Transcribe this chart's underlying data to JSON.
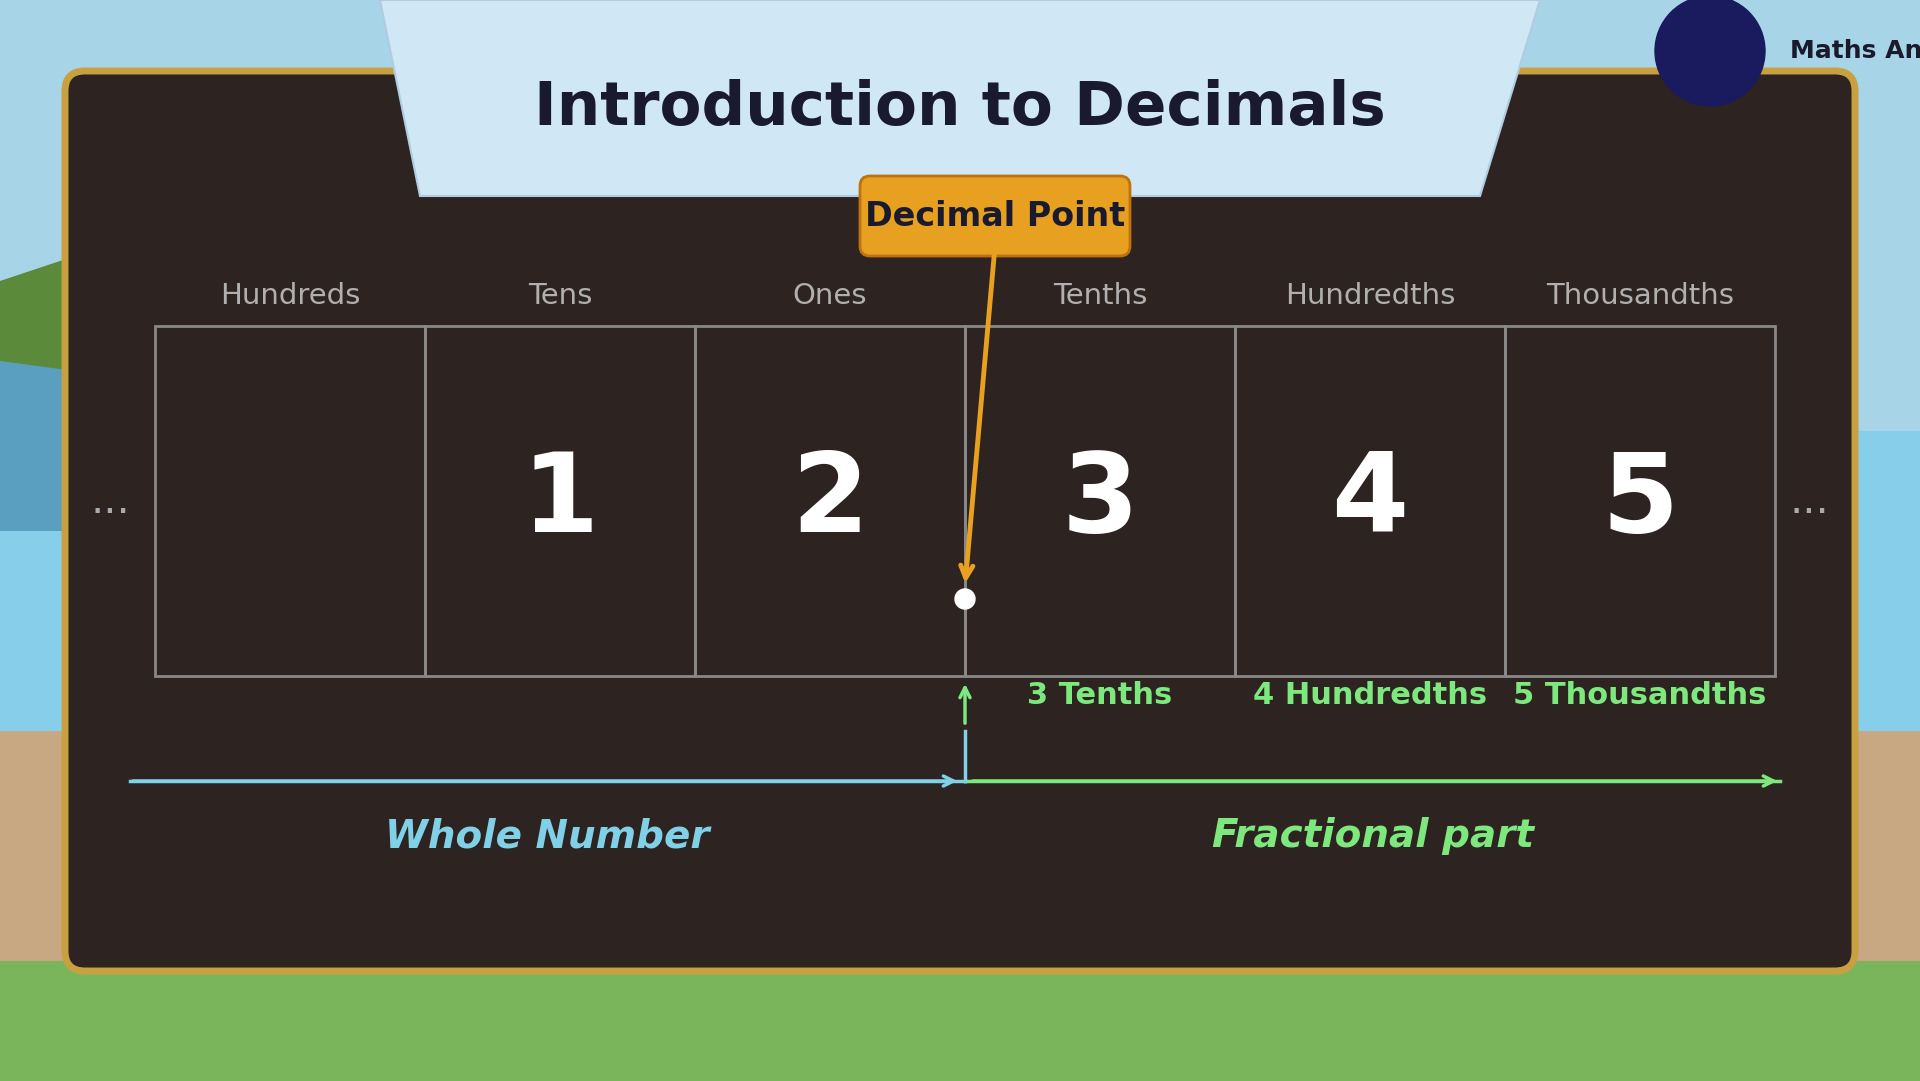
{
  "title": "Introduction to Decimals",
  "title_fontsize": 44,
  "title_color": "#1a1a2e",
  "bg_outer_top": "#87ceeb",
  "bg_outer_bottom": "#c8a882",
  "board_color": "#2d2320",
  "board_border_color": "#c8a040",
  "banner_color": "#d0e8f5",
  "columns": [
    "Hundreds",
    "Tens",
    "Ones",
    "Tenths",
    "Hundredths",
    "Thousandths"
  ],
  "digits": [
    "",
    "1",
    "2",
    "3",
    "4",
    "5"
  ],
  "digit_color": "#ffffff",
  "digit_fontsize": 80,
  "label_fontsize": 21,
  "label_color": "#b0b0b0",
  "cell_border_color": "#888888",
  "decimal_point_label": "Decimal Point",
  "decimal_point_bg": "#e8a020",
  "decimal_point_text_color": "#1a1a2e",
  "arrow_color": "#e8a020",
  "fractional_labels": [
    "3 Tenths",
    "4 Hundredths",
    "5 Thousandths"
  ],
  "fractional_label_color": "#7de87d",
  "whole_number_text": "Whole Number",
  "fractional_text": "Fractional part",
  "whole_arrow_color": "#80d0e8",
  "frac_arrow_color": "#7de87d",
  "annotation_fontsize": 22,
  "dots_color": "#aaaaaa",
  "decimal_dot_color": "#ffffff",
  "maths_angel_text": "Maths Angel",
  "sky_color": "#87ceeb",
  "ground_color": "#7ab55c",
  "sand_color": "#c8a882",
  "water_color": "#5a9fc0",
  "hill_color": "#5a8a3a"
}
